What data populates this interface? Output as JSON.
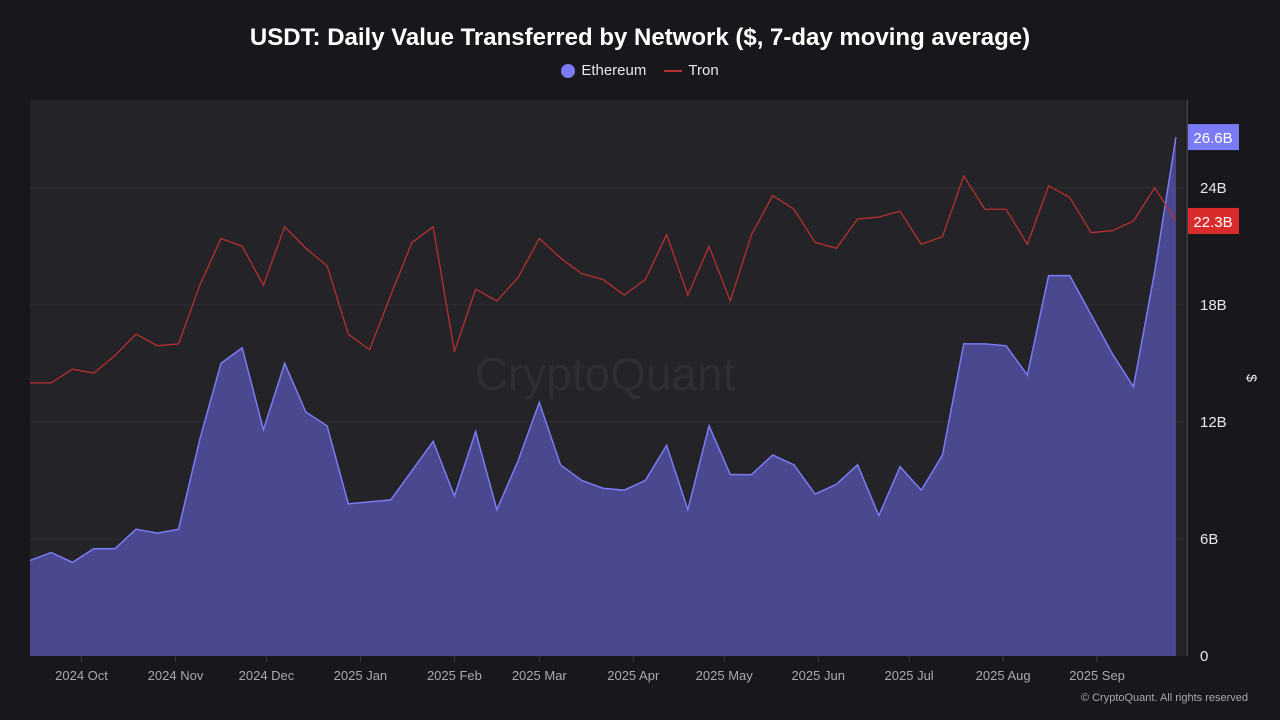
{
  "chart_data": {
    "type": "area",
    "title": "USDT: Daily Value Transferred by Network ($, 7-day moving average)",
    "ylabel": "$",
    "ylim": [
      0,
      28.5
    ],
    "yunit": "B",
    "yticks": [
      0,
      6,
      12,
      18,
      24
    ],
    "ytick_labels": [
      "0",
      "6B",
      "12B",
      "18B",
      "24B"
    ],
    "xlim": [
      "2024-09-14",
      "2025-09-30"
    ],
    "xticks": [
      "2024-10-01",
      "2024-11-01",
      "2024-12-01",
      "2025-01-01",
      "2025-02-01",
      "2025-03-01",
      "2025-04-01",
      "2025-05-01",
      "2025-06-01",
      "2025-07-01",
      "2025-08-01",
      "2025-09-01"
    ],
    "xtick_labels": [
      "2024 Oct",
      "2024 Nov",
      "2024 Dec",
      "2025 Jan",
      "2025 Feb",
      "2025 Mar",
      "2025 Apr",
      "2025 May",
      "2025 Jun",
      "2025 Jul",
      "2025 Aug",
      "2025 Sep"
    ],
    "grid": true,
    "legend_position": "top",
    "x": [
      "2024-09-14",
      "2024-09-21",
      "2024-09-28",
      "2024-10-05",
      "2024-10-12",
      "2024-10-19",
      "2024-10-26",
      "2024-11-02",
      "2024-11-09",
      "2024-11-16",
      "2024-11-23",
      "2024-11-30",
      "2024-12-07",
      "2024-12-14",
      "2024-12-21",
      "2024-12-28",
      "2025-01-04",
      "2025-01-11",
      "2025-01-18",
      "2025-01-25",
      "2025-02-01",
      "2025-02-08",
      "2025-02-15",
      "2025-02-22",
      "2025-03-01",
      "2025-03-08",
      "2025-03-15",
      "2025-03-22",
      "2025-03-29",
      "2025-04-05",
      "2025-04-12",
      "2025-04-19",
      "2025-04-26",
      "2025-05-03",
      "2025-05-10",
      "2025-05-17",
      "2025-05-24",
      "2025-05-31",
      "2025-06-07",
      "2025-06-14",
      "2025-06-21",
      "2025-06-28",
      "2025-07-05",
      "2025-07-12",
      "2025-07-19",
      "2025-07-26",
      "2025-08-02",
      "2025-08-09",
      "2025-08-16",
      "2025-08-23",
      "2025-08-30",
      "2025-09-06",
      "2025-09-13",
      "2025-09-20",
      "2025-09-27"
    ],
    "series": [
      {
        "name": "Ethereum",
        "type": "area",
        "color": "#7b7bf5",
        "fill": "#4d4b93",
        "last_label": "26.6B",
        "values": [
          4.9,
          5.3,
          4.8,
          5.5,
          5.5,
          6.5,
          6.3,
          6.5,
          11.1,
          15.0,
          15.8,
          11.6,
          15.0,
          12.5,
          11.8,
          7.8,
          7.9,
          8.0,
          9.5,
          11.0,
          8.2,
          11.5,
          7.5,
          10.0,
          13.0,
          9.8,
          9.0,
          8.6,
          8.5,
          9.0,
          10.8,
          7.5,
          11.8,
          9.3,
          9.3,
          10.3,
          9.8,
          8.3,
          8.8,
          9.8,
          7.2,
          9.7,
          8.5,
          10.3,
          16.0,
          16.0,
          15.9,
          14.4,
          19.5,
          19.5,
          17.5,
          15.5,
          13.8,
          19.7,
          26.6
        ]
      },
      {
        "name": "Tron",
        "type": "line",
        "color": "#b8302f",
        "label_color": "#d92b2b",
        "last_label": "22.3B",
        "values": [
          14.0,
          14.0,
          14.7,
          14.5,
          15.4,
          16.5,
          15.9,
          16.0,
          19.0,
          21.4,
          21.0,
          19.0,
          22.0,
          20.9,
          20.0,
          16.5,
          15.7,
          18.5,
          21.2,
          22.0,
          15.6,
          18.8,
          18.2,
          19.4,
          21.4,
          20.4,
          19.6,
          19.3,
          18.5,
          19.3,
          21.6,
          18.5,
          21.0,
          18.2,
          21.6,
          23.6,
          22.9,
          21.2,
          20.9,
          22.4,
          22.5,
          22.8,
          21.1,
          21.5,
          24.6,
          22.9,
          22.9,
          21.1,
          24.1,
          23.5,
          21.7,
          21.8,
          22.3,
          24.0,
          22.3
        ]
      }
    ],
    "watermark": "CryptoQuant",
    "copyright": "© CryptoQuant. All rights reserved"
  }
}
